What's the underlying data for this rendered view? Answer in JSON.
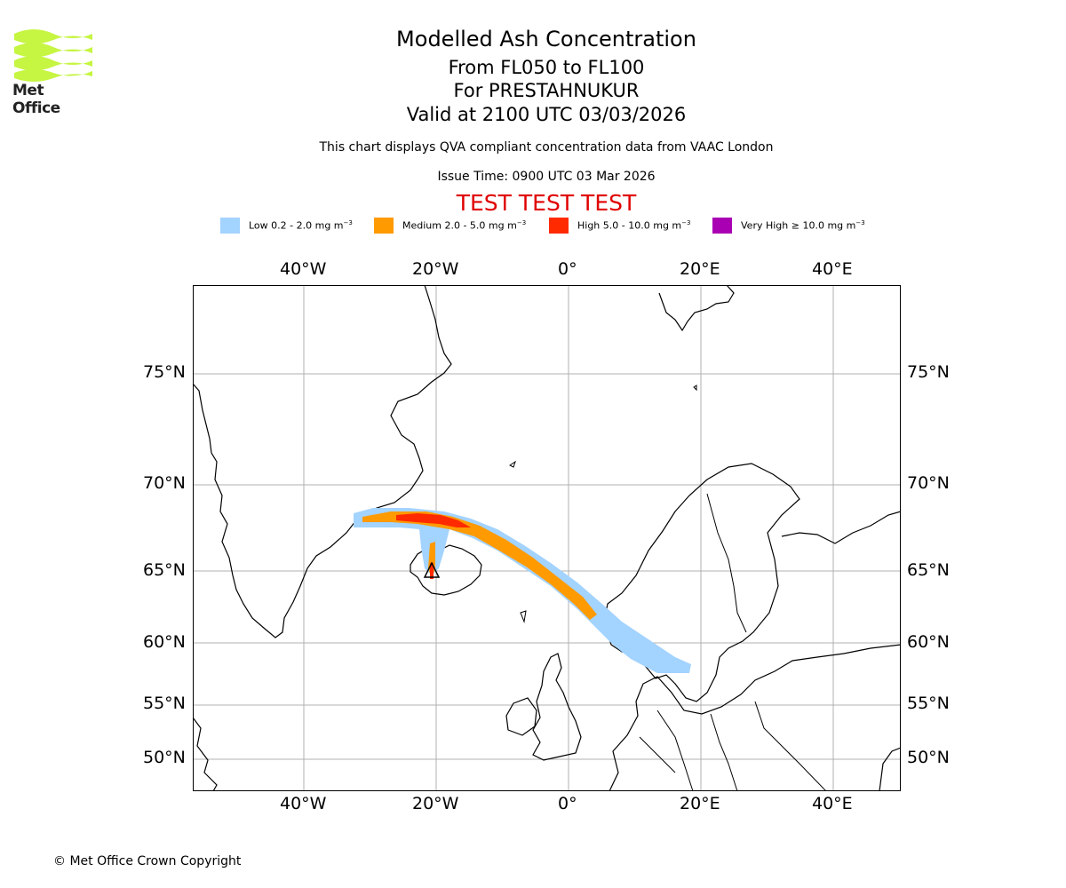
{
  "logo": {
    "text": "Met Office",
    "colors": {
      "waves": "#c6f542",
      "text": "#222222"
    }
  },
  "header": {
    "title": "Modelled Ash Concentration",
    "flight_levels": "From FL050 to FL100",
    "volcano": "For PRESTAHNUKUR",
    "valid_time": "Valid at 2100 UTC 03/03/2026",
    "description": "This chart displays QVA compliant concentration data from VAAC London",
    "issue_time": "Issue Time: 0900 UTC 03 Mar 2026",
    "test_banner": "TEST TEST TEST"
  },
  "legend": [
    {
      "label": "Low 0.2 - 2.0 mg m",
      "unit_sup": "−3",
      "color": "#a3d3ff"
    },
    {
      "label": "Medium 2.0 - 5.0 mg m",
      "unit_sup": "−3",
      "color": "#ff9a00"
    },
    {
      "label": "High 5.0 - 10.0 mg m",
      "unit_sup": "−3",
      "color": "#ff2a00"
    },
    {
      "label": "Very High  ≥  10.0 mg m",
      "unit_sup": "−3",
      "color": "#aa00b4"
    }
  ],
  "map": {
    "longitude_labels": [
      "40°W",
      "20°W",
      "0°",
      "20°E",
      "40°E"
    ],
    "latitude_labels": [
      "75°N",
      "70°N",
      "65°N",
      "60°N",
      "55°N",
      "50°N"
    ],
    "volcano_marker": "volcano-triangle"
  },
  "footer": {
    "copyright": "© Met Office Crown Copyright"
  }
}
